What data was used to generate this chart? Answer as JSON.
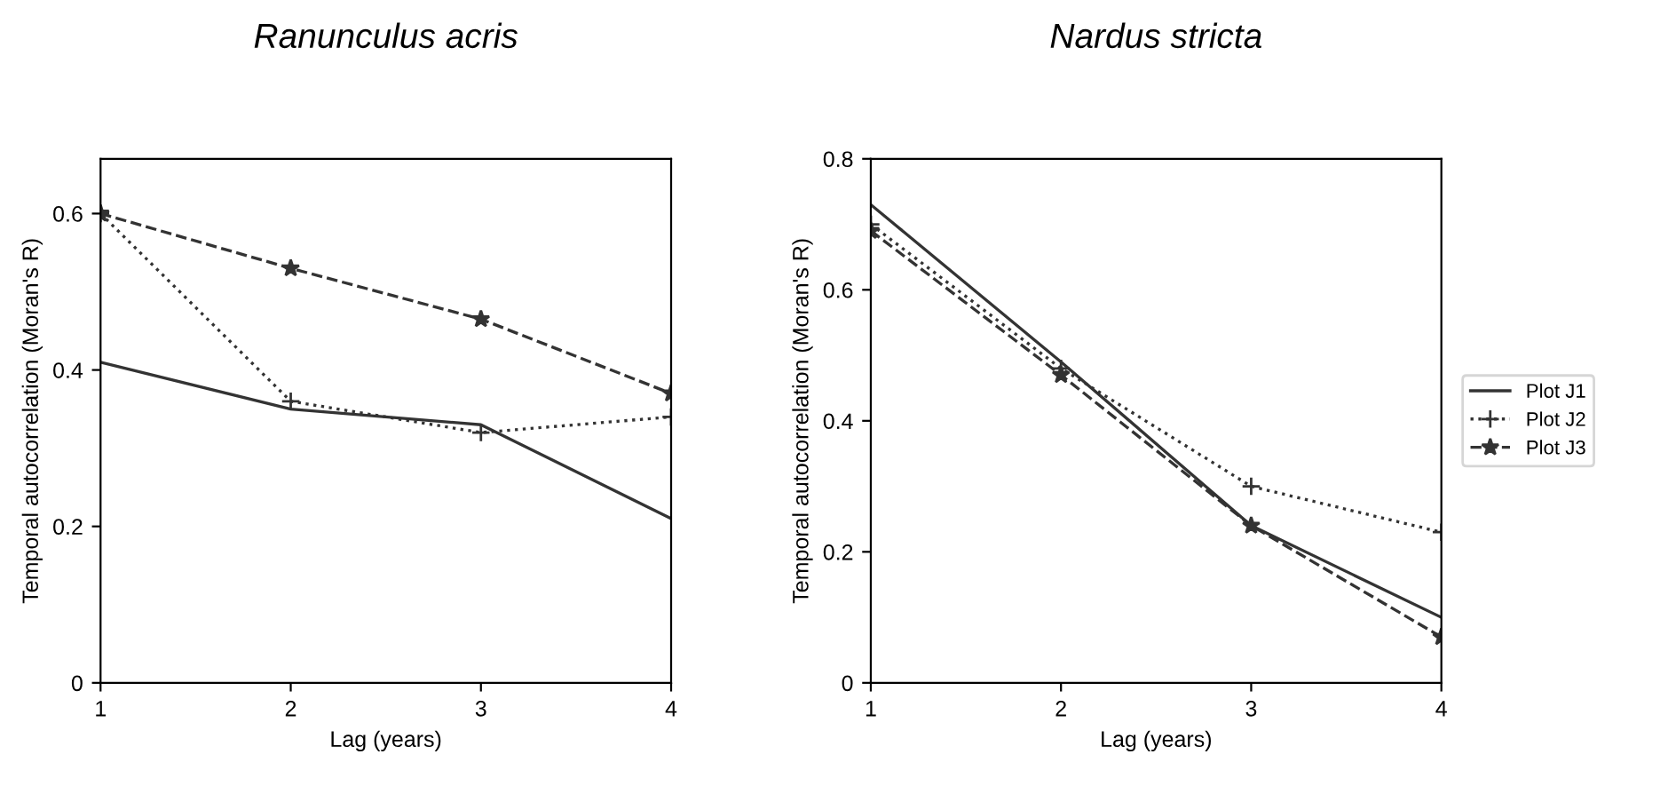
{
  "chart_data": [
    {
      "type": "line",
      "title": "Ranunculus acris",
      "xlabel": "Lag (years)",
      "ylabel": "Temporal autocorrelation (Moran's R)",
      "x": [
        1,
        2,
        3,
        4
      ],
      "xlim": [
        1,
        4
      ],
      "xticks": [
        1,
        2,
        3,
        4
      ],
      "ylim": [
        0,
        0.67
      ],
      "yticks": [
        0,
        0.2,
        0.4,
        0.6
      ],
      "grid": false,
      "legend": false,
      "series": [
        {
          "color": "#333333",
          "line_style": "solid",
          "marker": "none",
          "values": [
            0.41,
            0.35,
            0.33,
            0.21
          ]
        },
        {
          "color": "#333333",
          "line_style": "dotted",
          "marker": "cross",
          "values": [
            0.6,
            0.36,
            0.32,
            0.34
          ]
        },
        {
          "color": "#333333",
          "line_style": "dashed",
          "marker": "star",
          "values": [
            0.6,
            0.53,
            0.465,
            0.37
          ]
        }
      ]
    },
    {
      "type": "line",
      "title": "Nardus stricta",
      "xlabel": "Lag (years)",
      "ylabel": "Temporal autocorrelation (Moran's R)",
      "x": [
        1,
        2,
        3,
        4
      ],
      "xlim": [
        1,
        4
      ],
      "xticks": [
        1,
        2,
        3,
        4
      ],
      "ylim": [
        0,
        0.8
      ],
      "yticks": [
        0,
        0.2,
        0.4,
        0.6,
        0.8
      ],
      "grid": false,
      "legend": "right",
      "series": [
        {
          "name": "Plot J1",
          "color": "#333333",
          "line_style": "solid",
          "marker": "none",
          "values": [
            0.73,
            0.49,
            0.24,
            0.1
          ]
        },
        {
          "name": "Plot J2",
          "color": "#333333",
          "line_style": "dotted",
          "marker": "cross",
          "values": [
            0.7,
            0.48,
            0.3,
            0.23
          ]
        },
        {
          "name": "Plot J3",
          "color": "#333333",
          "line_style": "dashed",
          "marker": "star",
          "values": [
            0.69,
            0.47,
            0.24,
            0.07
          ]
        }
      ]
    }
  ]
}
